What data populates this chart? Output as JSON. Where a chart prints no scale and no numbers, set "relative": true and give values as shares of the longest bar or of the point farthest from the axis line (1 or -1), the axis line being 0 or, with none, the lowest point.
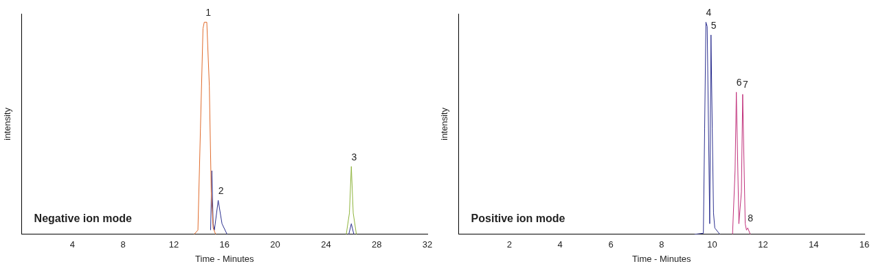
{
  "chart_data": [
    {
      "type": "line",
      "xlabel": "Time - Minutes",
      "ylabel": "intensity",
      "relative": true,
      "xlim": [
        0,
        32
      ],
      "xticks": [
        4,
        8,
        12,
        16,
        20,
        24,
        28,
        32
      ],
      "tick_labels": "x",
      "grid": false,
      "legend": false,
      "marker": "none",
      "line_style": "solid",
      "series": [
        {
          "color": "#e06a2a",
          "x": [
            13.6,
            13.9,
            14.1,
            14.3,
            14.4,
            14.6,
            14.8,
            14.95,
            15.1,
            15.3
          ],
          "values": [
            0,
            0.02,
            0.5,
            0.97,
            1,
            1,
            0.7,
            0.2,
            0.03,
            0
          ]
        },
        {
          "color": "#2b2f8f",
          "x": [
            14.9,
            15.0,
            15.1,
            15.2,
            15.5,
            15.8,
            16.2,
            20,
            25.8,
            26.0,
            26.2
          ],
          "values": [
            0.02,
            0.3,
            0.05,
            0.02,
            0.16,
            0.05,
            0,
            null,
            0,
            0.05,
            0
          ]
        },
        {
          "color": "#8db33a",
          "x": [
            25.6,
            25.85,
            26.0,
            26.15,
            26.4
          ],
          "values": [
            0,
            0.1,
            0.32,
            0.1,
            0
          ]
        }
      ],
      "annotations": [
        {
          "text": "1",
          "x": 14.5,
          "y": 1
        },
        {
          "text": "2",
          "x": 15.5,
          "y": 0.16
        },
        {
          "text": "3",
          "x": 26.0,
          "y": 0.32
        },
        "Negative ion mode"
      ]
    },
    {
      "type": "line",
      "xlabel": "Time - Minutes",
      "ylabel": "intensity",
      "relative": true,
      "xlim": [
        0,
        16
      ],
      "xticks": [
        2,
        4,
        6,
        8,
        10,
        12,
        14,
        16
      ],
      "tick_labels": "x",
      "grid": false,
      "legend": false,
      "marker": "none",
      "line_style": "solid",
      "series": [
        {
          "color": "#2b2f8f",
          "x": [
            9.3,
            9.65,
            9.7,
            9.75,
            9.8,
            9.9,
            9.95,
            10.0,
            10.05,
            10.1,
            10.3
          ],
          "values": [
            0,
            0.005,
            0.5,
            1,
            0.98,
            0.05,
            0.94,
            0.5,
            0.1,
            0.03,
            0
          ]
        },
        {
          "color": "#c0307a",
          "x": [
            10.8,
            10.9,
            10.95,
            11.05,
            11.15,
            11.2,
            11.3,
            11.35,
            11.4,
            11.5
          ],
          "values": [
            0,
            0.3,
            0.67,
            0.05,
            0.2,
            0.66,
            0.05,
            0.02,
            0.03,
            0
          ]
        }
      ],
      "annotations": [
        {
          "text": "4",
          "x": 9.75,
          "y": 1
        },
        {
          "text": "5",
          "x": 9.95,
          "y": 0.94
        },
        {
          "text": "6",
          "x": 10.95,
          "y": 0.67
        },
        {
          "text": "7",
          "x": 11.2,
          "y": 0.66
        },
        {
          "text": "8",
          "x": 11.4,
          "y": 0.03
        },
        "Positive ion mode"
      ]
    }
  ]
}
